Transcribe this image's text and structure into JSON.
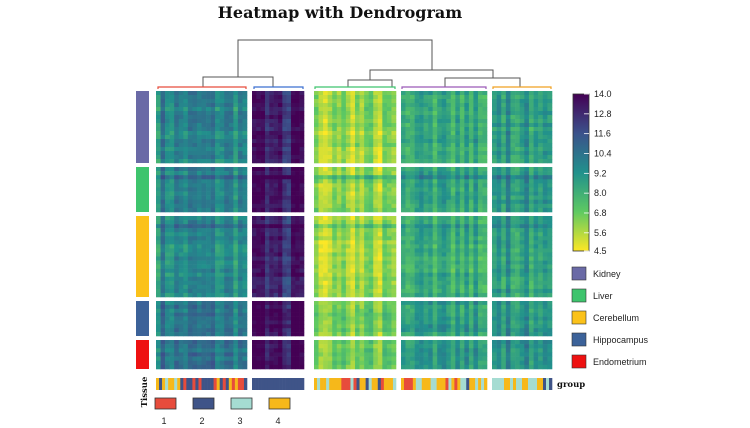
{
  "chart_data": {
    "type": "heatmap",
    "title": "Heatmap with Dendrogram",
    "colorbar": {
      "ticks": [
        "14.0",
        "12.8",
        "11.6",
        "10.4",
        "9.2",
        "8.0",
        "6.8",
        "5.6",
        "4.5"
      ],
      "min": 4.5,
      "max": 14.0,
      "colormap": "viridis"
    },
    "row_groups": [
      {
        "name": "Kidney",
        "color": "#6a6aa6"
      },
      {
        "name": "Liver",
        "color": "#3ec46d"
      },
      {
        "name": "Cerebellum",
        "color": "#fbc21a"
      },
      {
        "name": "Hippocampus",
        "color": "#3c6299"
      },
      {
        "name": "Endometrium",
        "color": "#ee1111"
      }
    ],
    "row_annotation_label": "Tissue",
    "column_annotation_label": "group",
    "column_groups": [
      {
        "name": "1",
        "color": "#e74c3c"
      },
      {
        "name": "2",
        "color": "#3f5488"
      },
      {
        "name": "3",
        "color": "#a5dcd2"
      },
      {
        "name": "4",
        "color": "#f6b81a"
      }
    ],
    "column_clusters": [
      {
        "mean": 9.6,
        "color": "#e74c3c"
      },
      {
        "mean": 12.9,
        "color": "#3b6fd0"
      },
      {
        "mean": 6.1,
        "color": "#3ec46d"
      },
      {
        "mean": 8.2,
        "color": "#9b59b6"
      },
      {
        "mean": 8.9,
        "color": "#f0a020"
      }
    ]
  }
}
